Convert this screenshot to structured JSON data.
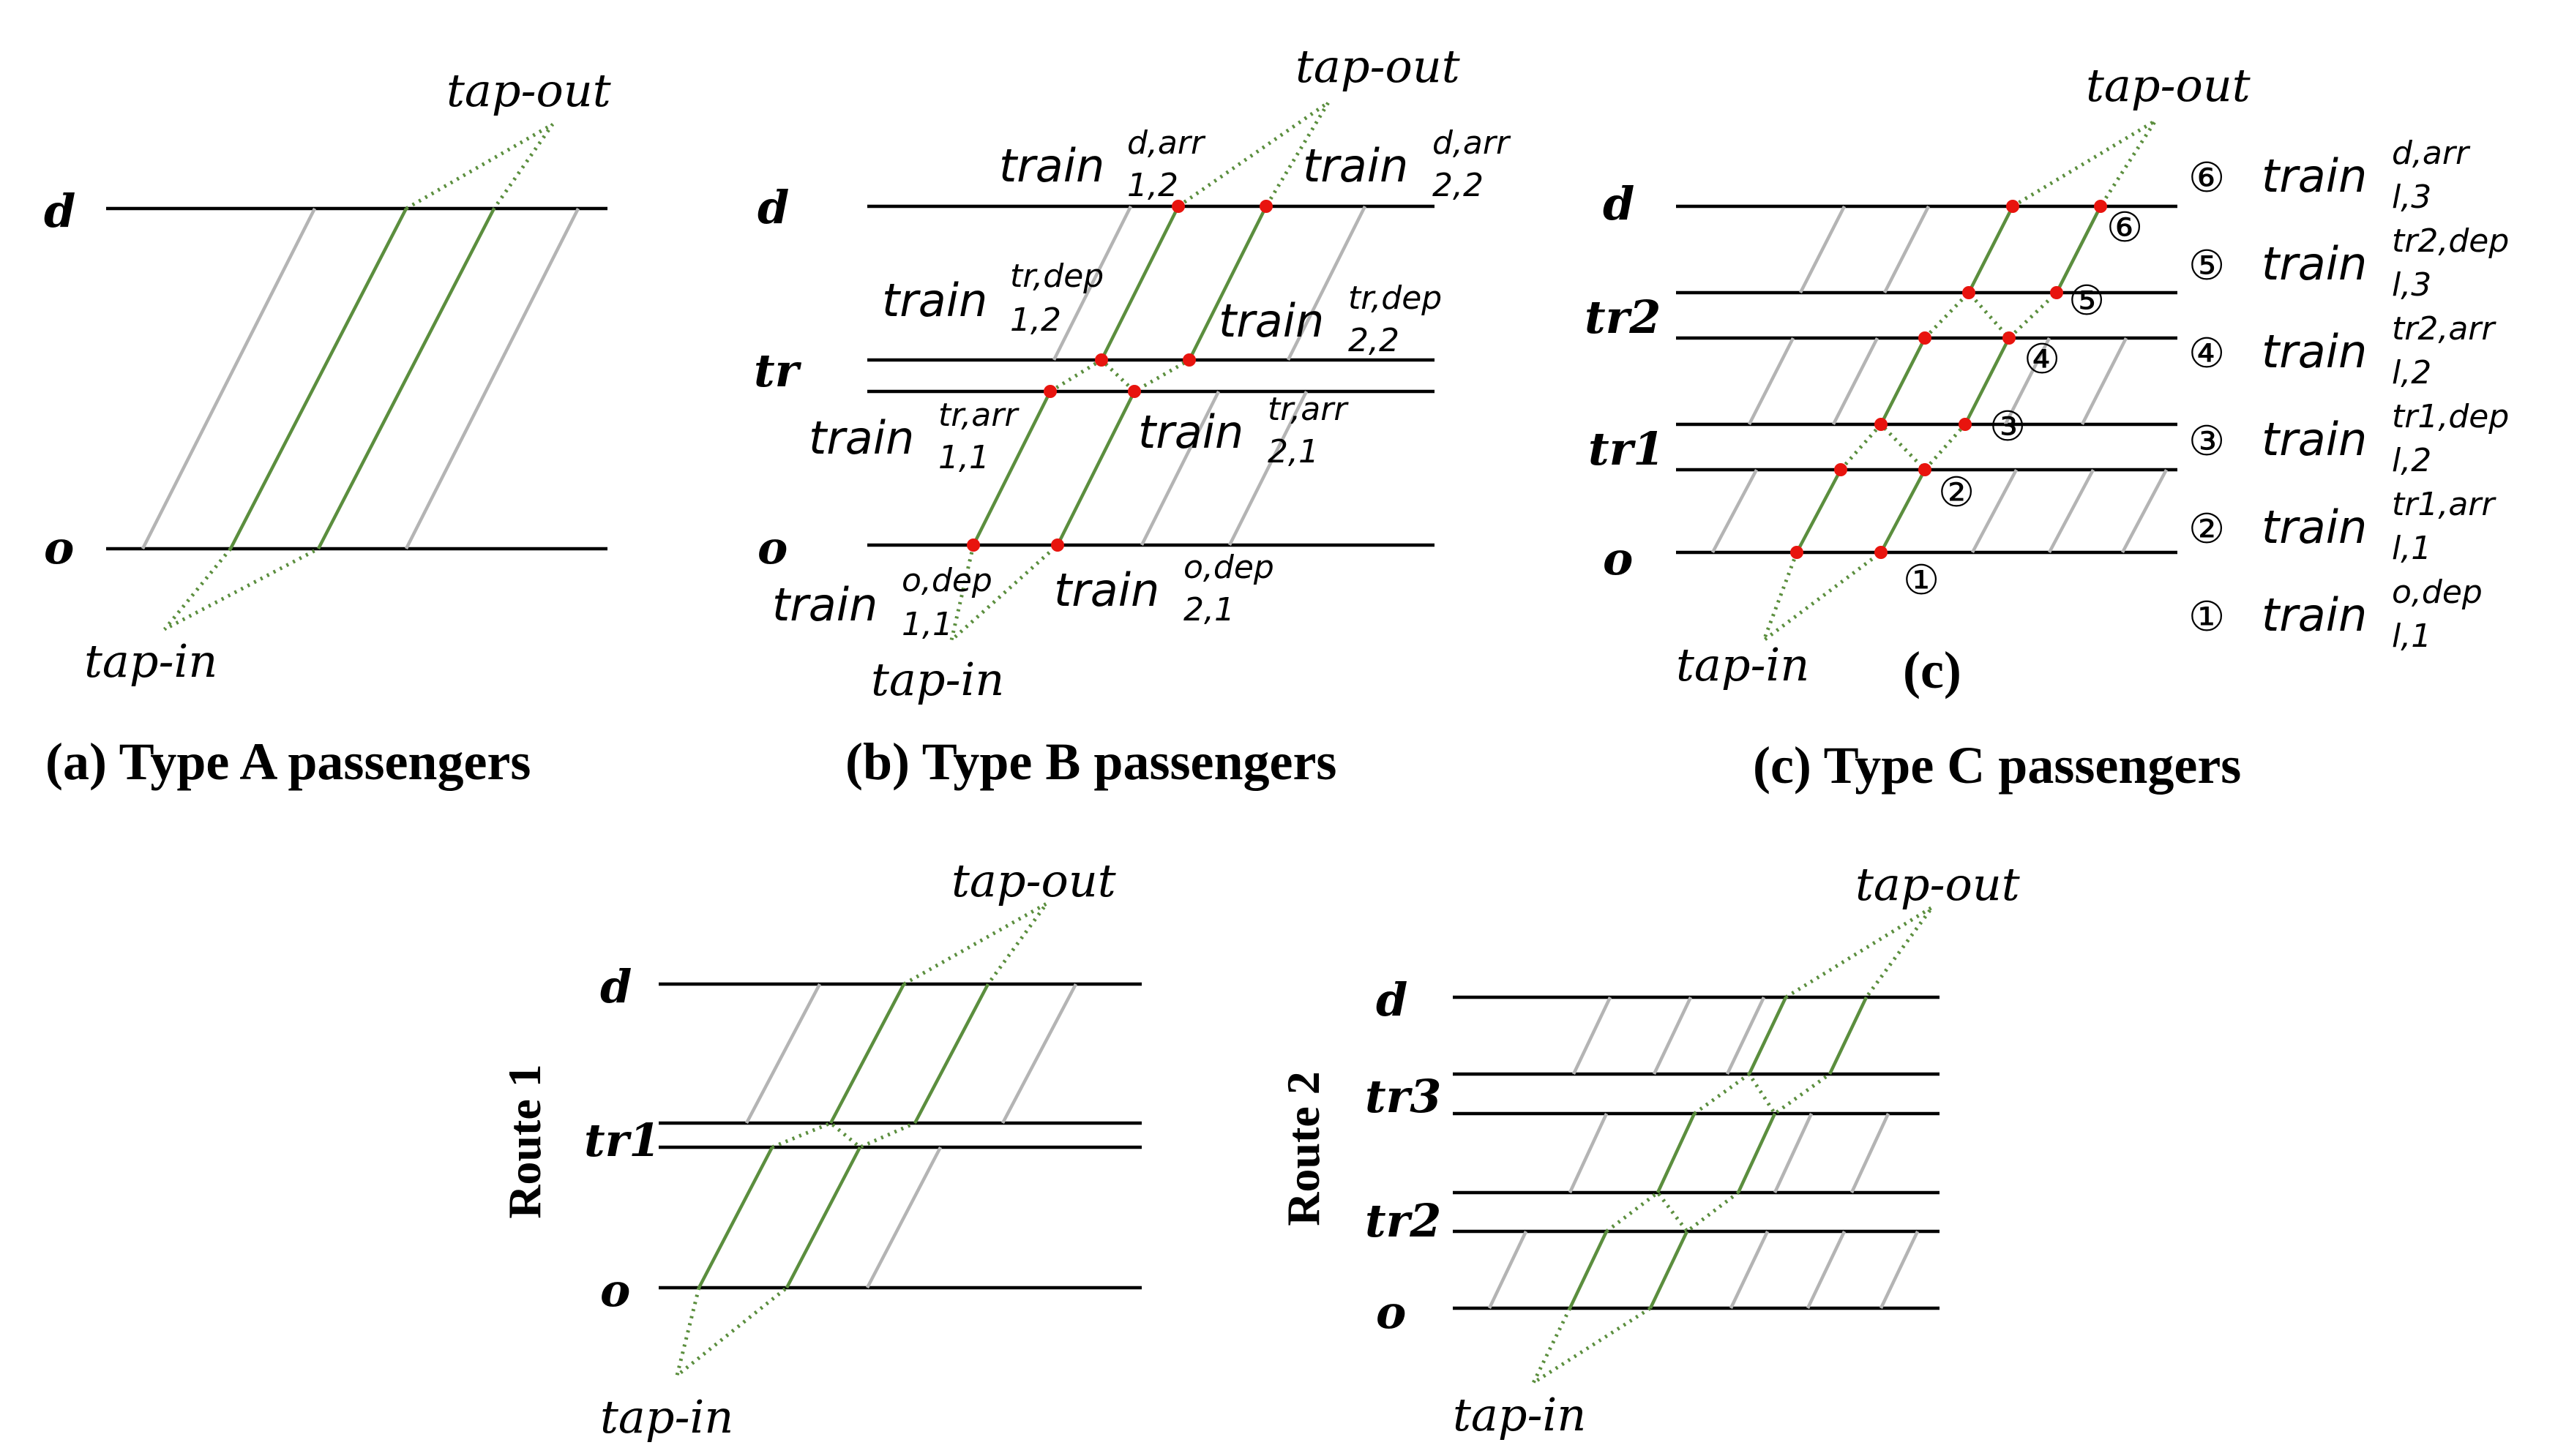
{
  "stations": {
    "d": "d",
    "tr": "tr",
    "tr1": "tr1",
    "tr2": "tr2",
    "tr3": "tr3",
    "o": "o"
  },
  "tap_in": "tap-in",
  "tap_out": "tap-out",
  "captions": {
    "a": "(a) Type A passengers",
    "b": "(b) Type B passengers",
    "c": "(c) Type C passengers",
    "c_short": "(c)"
  },
  "routes": {
    "r1": "Route 1",
    "r2": "Route 2"
  },
  "train_word": "train",
  "panel_b_labels": [
    {
      "sup": "d,arr",
      "sub": "1,2"
    },
    {
      "sup": "d,arr",
      "sub": "2,2"
    },
    {
      "sup": "tr,dep",
      "sub": "1,2"
    },
    {
      "sup": "tr,dep",
      "sub": "2,2"
    },
    {
      "sup": "tr,arr",
      "sub": "1,1"
    },
    {
      "sup": "tr,arr",
      "sub": "2,1"
    },
    {
      "sup": "o,dep",
      "sub": "1,1"
    },
    {
      "sup": "o,dep",
      "sub": "2,1"
    }
  ],
  "circled_markers": [
    "①",
    "②",
    "③",
    "④",
    "⑤",
    "⑥"
  ],
  "legend": [
    {
      "marker": "⑥",
      "sup": "d,arr",
      "sub": "l,3"
    },
    {
      "marker": "⑤",
      "sup": "tr2,dep",
      "sub": "l,3"
    },
    {
      "marker": "④",
      "sup": "tr2,arr",
      "sub": "l,2"
    },
    {
      "marker": "③",
      "sup": "tr1,dep",
      "sub": "l,2"
    },
    {
      "marker": "②",
      "sup": "tr1,arr",
      "sub": "l,1"
    },
    {
      "marker": "①",
      "sup": "o,dep",
      "sub": "l,1"
    }
  ],
  "colors": {
    "track": "#000000",
    "other_trains": "#b4b4b4",
    "used_trains": "#5b8e3e",
    "event_points": "#e8140e"
  }
}
